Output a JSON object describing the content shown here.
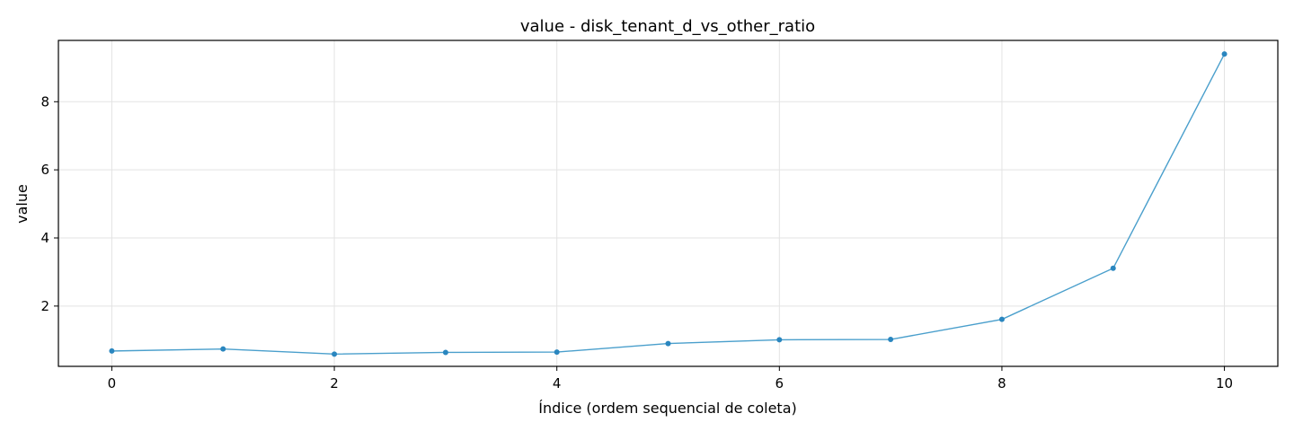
{
  "chart_data": {
    "type": "line",
    "title": "value - disk_tenant_d_vs_other_ratio",
    "xlabel": "Índice (ordem sequencial de coleta)",
    "ylabel": "value",
    "x": [
      0,
      1,
      2,
      3,
      4,
      5,
      6,
      7,
      8,
      9,
      10
    ],
    "series": [
      {
        "values": [
          0.68,
          0.74,
          0.59,
          0.64,
          0.65,
          0.9,
          1.01,
          1.02,
          1.61,
          3.11,
          9.4
        ],
        "color": "#4a9fcc",
        "marker_color": "#2a86bf"
      }
    ],
    "xlim": [
      -0.48,
      10.48
    ],
    "ylim": [
      0.23,
      9.8
    ],
    "xticks": [
      0,
      2,
      4,
      6,
      8,
      10
    ],
    "yticks": [
      2,
      4,
      6,
      8
    ],
    "grid": true
  }
}
